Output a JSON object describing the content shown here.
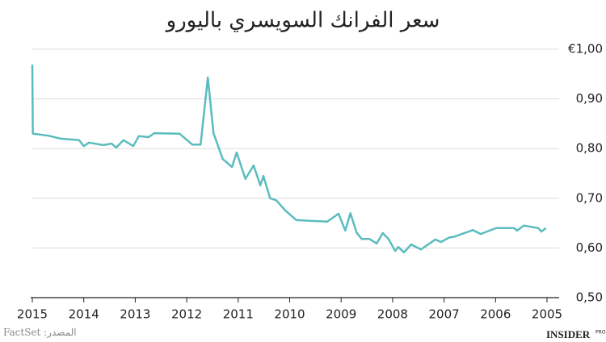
{
  "chart_data": {
    "type": "line",
    "title": "سعر الفرانك السويسري باليورو",
    "source": "المصدر: FactSet",
    "logo": "INSIDER",
    "logo_sub": "PRO",
    "x": [
      2015.0,
      2014.99,
      2014.69,
      2014.45,
      2014.09,
      2014.0,
      2013.9,
      2013.62,
      2013.46,
      2013.37,
      2013.23,
      2013.04,
      2012.93,
      2012.74,
      2012.63,
      2012.14,
      2011.89,
      2011.73,
      2011.59,
      2011.48,
      2011.3,
      2011.12,
      2011.03,
      2010.86,
      2010.7,
      2010.57,
      2010.51,
      2010.38,
      2010.26,
      2010.1,
      2009.87,
      2009.27,
      2009.05,
      2008.92,
      2008.82,
      2008.7,
      2008.6,
      2008.45,
      2008.31,
      2008.19,
      2008.08,
      2007.95,
      2007.89,
      2007.78,
      2007.64,
      2007.45,
      2007.17,
      2007.06,
      2006.9,
      2006.79,
      2006.44,
      2006.29,
      2005.99,
      2005.64,
      2005.58,
      2005.45,
      2005.17,
      2005.11,
      2005.02
    ],
    "series": [
      {
        "color": "#5bbcbf",
        "values": [
          0.969,
          0.83,
          0.826,
          0.82,
          0.817,
          0.805,
          0.812,
          0.807,
          0.81,
          0.802,
          0.817,
          0.805,
          0.825,
          0.823,
          0.831,
          0.83,
          0.808,
          0.808,
          0.943,
          0.831,
          0.779,
          0.763,
          0.792,
          0.739,
          0.766,
          0.726,
          0.745,
          0.7,
          0.696,
          0.677,
          0.656,
          0.653,
          0.669,
          0.635,
          0.67,
          0.631,
          0.618,
          0.618,
          0.609,
          0.63,
          0.618,
          0.594,
          0.602,
          0.591,
          0.607,
          0.597,
          0.617,
          0.612,
          0.621,
          0.623,
          0.636,
          0.628,
          0.64,
          0.64,
          0.635,
          0.645,
          0.64,
          0.633,
          0.64
        ]
      }
    ],
    "xlim": [
      2015,
      2005
    ],
    "xticks": [
      2015,
      2014,
      2013,
      2012,
      2011,
      2010,
      2009,
      2008,
      2007,
      2006,
      2005
    ],
    "ylim": [
      0.5,
      1.0
    ],
    "yticks": [
      {
        "value": 0.5,
        "label": "0,50"
      },
      {
        "value": 0.6,
        "label": "0,60"
      },
      {
        "value": 0.7,
        "label": "0,70"
      },
      {
        "value": 0.8,
        "label": "0,80"
      },
      {
        "value": 0.9,
        "label": "0,90"
      },
      {
        "value": 1.0,
        "label": "€1,00"
      }
    ],
    "grid": true
  }
}
